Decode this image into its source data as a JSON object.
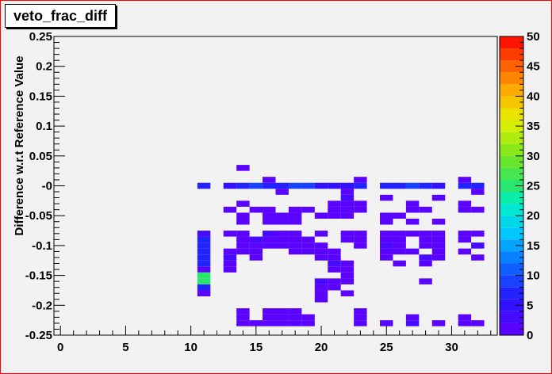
{
  "title": "veto_frac_diff",
  "chart_data": {
    "type": "heatmap",
    "title": "veto_frac_diff",
    "xlabel": "",
    "ylabel": "Difference w.r.t Reference Value",
    "xlim": [
      -0.5,
      33.5
    ],
    "ylim": [
      -0.25,
      0.25
    ],
    "x_ticks": [
      "0",
      "5",
      "10",
      "15",
      "20",
      "25",
      "30"
    ],
    "x_tick_values": [
      0,
      5,
      10,
      15,
      20,
      25,
      30
    ],
    "y_ticks": [
      "0.25",
      "0.2",
      "0.15",
      "0.1",
      "0.05",
      "-0",
      "-0.05",
      "-0.1",
      "-0.15",
      "-0.2",
      "-0.25"
    ],
    "y_tick_values": [
      0.25,
      0.2,
      0.15,
      0.1,
      0.05,
      0,
      -0.05,
      -0.1,
      -0.15,
      -0.2,
      -0.25
    ],
    "y_bin_width": 0.01,
    "z_range": [
      0,
      50
    ],
    "z_ticks": [
      "50",
      "45",
      "40",
      "35",
      "30",
      "25",
      "20",
      "15",
      "10",
      "5",
      "0"
    ],
    "z_tick_values": [
      50,
      45,
      40,
      35,
      30,
      25,
      20,
      15,
      10,
      5,
      0
    ],
    "grid": false,
    "cells": [
      {
        "x": 14,
        "y": 0.03,
        "z": 1
      },
      {
        "x": 16,
        "y": 0.01,
        "z": 1
      },
      {
        "x": 23,
        "y": 0.01,
        "z": 1
      },
      {
        "x": 31,
        "y": 0.01,
        "z": 1
      },
      {
        "x": 11,
        "y": 0.0,
        "z": 6
      },
      {
        "x": 13,
        "y": 0.0,
        "z": 5
      },
      {
        "x": 14,
        "y": 0.0,
        "z": 6
      },
      {
        "x": 15,
        "y": 0.0,
        "z": 8
      },
      {
        "x": 16,
        "y": 0.0,
        "z": 6
      },
      {
        "x": 17,
        "y": 0.0,
        "z": 7
      },
      {
        "x": 18,
        "y": 0.0,
        "z": 8
      },
      {
        "x": 19,
        "y": 0.0,
        "z": 8
      },
      {
        "x": 20,
        "y": 0.0,
        "z": 5
      },
      {
        "x": 21,
        "y": 0.0,
        "z": 4
      },
      {
        "x": 22,
        "y": 0.0,
        "z": 5
      },
      {
        "x": 23,
        "y": 0.0,
        "z": 6
      },
      {
        "x": 25,
        "y": 0.0,
        "z": 6
      },
      {
        "x": 26,
        "y": 0.0,
        "z": 6
      },
      {
        "x": 27,
        "y": 0.0,
        "z": 8
      },
      {
        "x": 28,
        "y": 0.0,
        "z": 6
      },
      {
        "x": 29,
        "y": 0.0,
        "z": 5
      },
      {
        "x": 31,
        "y": 0.0,
        "z": 6
      },
      {
        "x": 32,
        "y": 0.0,
        "z": 6
      },
      {
        "x": 17,
        "y": -0.01,
        "z": 1
      },
      {
        "x": 22,
        "y": -0.01,
        "z": 1
      },
      {
        "x": 32,
        "y": -0.01,
        "z": 1
      },
      {
        "x": 22,
        "y": -0.02,
        "z": 3
      },
      {
        "x": 25,
        "y": -0.02,
        "z": 1
      },
      {
        "x": 29,
        "y": -0.02,
        "z": 1
      },
      {
        "x": 14,
        "y": -0.03,
        "z": 1
      },
      {
        "x": 21,
        "y": -0.03,
        "z": 1
      },
      {
        "x": 22,
        "y": -0.03,
        "z": 1
      },
      {
        "x": 23,
        "y": -0.03,
        "z": 1
      },
      {
        "x": 27,
        "y": -0.03,
        "z": 1
      },
      {
        "x": 31,
        "y": -0.03,
        "z": 1
      },
      {
        "x": 13,
        "y": -0.04,
        "z": 1
      },
      {
        "x": 15,
        "y": -0.04,
        "z": 1
      },
      {
        "x": 16,
        "y": -0.04,
        "z": 1
      },
      {
        "x": 18,
        "y": -0.04,
        "z": 1
      },
      {
        "x": 19,
        "y": -0.04,
        "z": 1
      },
      {
        "x": 21,
        "y": -0.04,
        "z": 1
      },
      {
        "x": 22,
        "y": -0.04,
        "z": 1
      },
      {
        "x": 23,
        "y": -0.04,
        "z": 1
      },
      {
        "x": 27,
        "y": -0.04,
        "z": 1
      },
      {
        "x": 28,
        "y": -0.04,
        "z": 1
      },
      {
        "x": 31,
        "y": -0.04,
        "z": 1
      },
      {
        "x": 32,
        "y": -0.04,
        "z": 1
      },
      {
        "x": 14,
        "y": -0.05,
        "z": 1
      },
      {
        "x": 16,
        "y": -0.05,
        "z": 1
      },
      {
        "x": 17,
        "y": -0.05,
        "z": 1
      },
      {
        "x": 18,
        "y": -0.05,
        "z": 1
      },
      {
        "x": 20,
        "y": -0.05,
        "z": 1
      },
      {
        "x": 21,
        "y": -0.05,
        "z": 1
      },
      {
        "x": 22,
        "y": -0.05,
        "z": 1
      },
      {
        "x": 25,
        "y": -0.05,
        "z": 1
      },
      {
        "x": 26,
        "y": -0.05,
        "z": 1
      },
      {
        "x": 14,
        "y": -0.06,
        "z": 1
      },
      {
        "x": 16,
        "y": -0.06,
        "z": 1
      },
      {
        "x": 17,
        "y": -0.06,
        "z": 1
      },
      {
        "x": 18,
        "y": -0.06,
        "z": 1
      },
      {
        "x": 25,
        "y": -0.06,
        "z": 1
      },
      {
        "x": 27,
        "y": -0.06,
        "z": 1
      },
      {
        "x": 29,
        "y": -0.06,
        "z": 1
      },
      {
        "x": 11,
        "y": -0.08,
        "z": 2
      },
      {
        "x": 13,
        "y": -0.08,
        "z": 1
      },
      {
        "x": 14,
        "y": -0.08,
        "z": 1
      },
      {
        "x": 16,
        "y": -0.08,
        "z": 3
      },
      {
        "x": 17,
        "y": -0.08,
        "z": 1
      },
      {
        "x": 18,
        "y": -0.08,
        "z": 1
      },
      {
        "x": 20,
        "y": -0.08,
        "z": 1
      },
      {
        "x": 22,
        "y": -0.08,
        "z": 1
      },
      {
        "x": 23,
        "y": -0.08,
        "z": 1
      },
      {
        "x": 25,
        "y": -0.08,
        "z": 1
      },
      {
        "x": 26,
        "y": -0.08,
        "z": 1
      },
      {
        "x": 27,
        "y": -0.08,
        "z": 1
      },
      {
        "x": 28,
        "y": -0.08,
        "z": 1
      },
      {
        "x": 29,
        "y": -0.08,
        "z": 1
      },
      {
        "x": 31,
        "y": -0.08,
        "z": 1
      },
      {
        "x": 32,
        "y": -0.08,
        "z": 1
      },
      {
        "x": 11,
        "y": -0.09,
        "z": 7
      },
      {
        "x": 14,
        "y": -0.09,
        "z": 1
      },
      {
        "x": 15,
        "y": -0.09,
        "z": 3
      },
      {
        "x": 16,
        "y": -0.09,
        "z": 1
      },
      {
        "x": 17,
        "y": -0.09,
        "z": 1
      },
      {
        "x": 18,
        "y": -0.09,
        "z": 1
      },
      {
        "x": 19,
        "y": -0.09,
        "z": 1
      },
      {
        "x": 22,
        "y": -0.09,
        "z": 1
      },
      {
        "x": 23,
        "y": -0.09,
        "z": 1
      },
      {
        "x": 25,
        "y": -0.09,
        "z": 1
      },
      {
        "x": 26,
        "y": -0.09,
        "z": 1
      },
      {
        "x": 28,
        "y": -0.09,
        "z": 1
      },
      {
        "x": 29,
        "y": -0.09,
        "z": 1
      },
      {
        "x": 31,
        "y": -0.09,
        "z": 1
      },
      {
        "x": 11,
        "y": -0.1,
        "z": 7
      },
      {
        "x": 14,
        "y": -0.1,
        "z": 1
      },
      {
        "x": 15,
        "y": -0.1,
        "z": 1
      },
      {
        "x": 16,
        "y": -0.1,
        "z": 1
      },
      {
        "x": 17,
        "y": -0.1,
        "z": 1
      },
      {
        "x": 18,
        "y": -0.1,
        "z": 1
      },
      {
        "x": 19,
        "y": -0.1,
        "z": 1
      },
      {
        "x": 20,
        "y": -0.1,
        "z": 1
      },
      {
        "x": 23,
        "y": -0.1,
        "z": 1
      },
      {
        "x": 25,
        "y": -0.1,
        "z": 3
      },
      {
        "x": 26,
        "y": -0.1,
        "z": 1
      },
      {
        "x": 28,
        "y": -0.1,
        "z": 1
      },
      {
        "x": 29,
        "y": -0.1,
        "z": 1
      },
      {
        "x": 32,
        "y": -0.1,
        "z": 3
      },
      {
        "x": 11,
        "y": -0.11,
        "z": 7
      },
      {
        "x": 13,
        "y": -0.11,
        "z": 1
      },
      {
        "x": 14,
        "y": -0.11,
        "z": 1
      },
      {
        "x": 15,
        "y": -0.11,
        "z": 1
      },
      {
        "x": 18,
        "y": -0.11,
        "z": 1
      },
      {
        "x": 19,
        "y": -0.11,
        "z": 1
      },
      {
        "x": 20,
        "y": -0.11,
        "z": 1
      },
      {
        "x": 21,
        "y": -0.11,
        "z": 1
      },
      {
        "x": 25,
        "y": -0.11,
        "z": 1
      },
      {
        "x": 26,
        "y": -0.11,
        "z": 1
      },
      {
        "x": 27,
        "y": -0.11,
        "z": 1
      },
      {
        "x": 29,
        "y": -0.11,
        "z": 1
      },
      {
        "x": 31,
        "y": -0.11,
        "z": 1
      },
      {
        "x": 11,
        "y": -0.12,
        "z": 7
      },
      {
        "x": 13,
        "y": -0.12,
        "z": 3
      },
      {
        "x": 15,
        "y": -0.12,
        "z": 1
      },
      {
        "x": 20,
        "y": -0.12,
        "z": 1
      },
      {
        "x": 21,
        "y": -0.12,
        "z": 1
      },
      {
        "x": 25,
        "y": -0.12,
        "z": 1
      },
      {
        "x": 28,
        "y": -0.12,
        "z": 3
      },
      {
        "x": 29,
        "y": -0.12,
        "z": 1
      },
      {
        "x": 32,
        "y": -0.12,
        "z": 1
      },
      {
        "x": 11,
        "y": -0.13,
        "z": 7
      },
      {
        "x": 13,
        "y": -0.13,
        "z": 1
      },
      {
        "x": 21,
        "y": -0.13,
        "z": 3
      },
      {
        "x": 22,
        "y": -0.13,
        "z": 1
      },
      {
        "x": 26,
        "y": -0.13,
        "z": 1
      },
      {
        "x": 28,
        "y": -0.13,
        "z": 1
      },
      {
        "x": 11,
        "y": -0.14,
        "z": 1
      },
      {
        "x": 13,
        "y": -0.14,
        "z": 1
      },
      {
        "x": 21,
        "y": -0.14,
        "z": 1
      },
      {
        "x": 22,
        "y": -0.14,
        "z": 1
      },
      {
        "x": 11,
        "y": -0.15,
        "z": 24
      },
      {
        "x": 22,
        "y": -0.15,
        "z": 1
      },
      {
        "x": 11,
        "y": -0.16,
        "z": 24
      },
      {
        "x": 20,
        "y": -0.16,
        "z": 3
      },
      {
        "x": 21,
        "y": -0.16,
        "z": 1
      },
      {
        "x": 22,
        "y": -0.16,
        "z": 1
      },
      {
        "x": 28,
        "y": -0.16,
        "z": 1
      },
      {
        "x": 11,
        "y": -0.17,
        "z": 7
      },
      {
        "x": 20,
        "y": -0.17,
        "z": 1
      },
      {
        "x": 21,
        "y": -0.17,
        "z": 1
      },
      {
        "x": 11,
        "y": -0.18,
        "z": 1
      },
      {
        "x": 20,
        "y": -0.18,
        "z": 1
      },
      {
        "x": 22,
        "y": -0.18,
        "z": 1
      },
      {
        "x": 20,
        "y": -0.19,
        "z": 1
      },
      {
        "x": 14,
        "y": -0.21,
        "z": 1
      },
      {
        "x": 16,
        "y": -0.21,
        "z": 1
      },
      {
        "x": 17,
        "y": -0.21,
        "z": 1
      },
      {
        "x": 18,
        "y": -0.21,
        "z": 1
      },
      {
        "x": 23,
        "y": -0.21,
        "z": 1
      },
      {
        "x": 14,
        "y": -0.22,
        "z": 1
      },
      {
        "x": 16,
        "y": -0.22,
        "z": 1
      },
      {
        "x": 17,
        "y": -0.22,
        "z": 1
      },
      {
        "x": 18,
        "y": -0.22,
        "z": 1
      },
      {
        "x": 19,
        "y": -0.22,
        "z": 1
      },
      {
        "x": 23,
        "y": -0.22,
        "z": 1
      },
      {
        "x": 27,
        "y": -0.22,
        "z": 1
      },
      {
        "x": 31,
        "y": -0.22,
        "z": 1
      },
      {
        "x": 14,
        "y": -0.23,
        "z": 1
      },
      {
        "x": 15,
        "y": -0.23,
        "z": 1
      },
      {
        "x": 16,
        "y": -0.23,
        "z": 1
      },
      {
        "x": 17,
        "y": -0.23,
        "z": 1
      },
      {
        "x": 18,
        "y": -0.23,
        "z": 1
      },
      {
        "x": 19,
        "y": -0.23,
        "z": 1
      },
      {
        "x": 23,
        "y": -0.23,
        "z": 1
      },
      {
        "x": 25,
        "y": -0.23,
        "z": 1
      },
      {
        "x": 27,
        "y": -0.23,
        "z": 3
      },
      {
        "x": 29,
        "y": -0.23,
        "z": 1
      },
      {
        "x": 31,
        "y": -0.23,
        "z": 1
      },
      {
        "x": 32,
        "y": -0.23,
        "z": 1
      }
    ]
  }
}
